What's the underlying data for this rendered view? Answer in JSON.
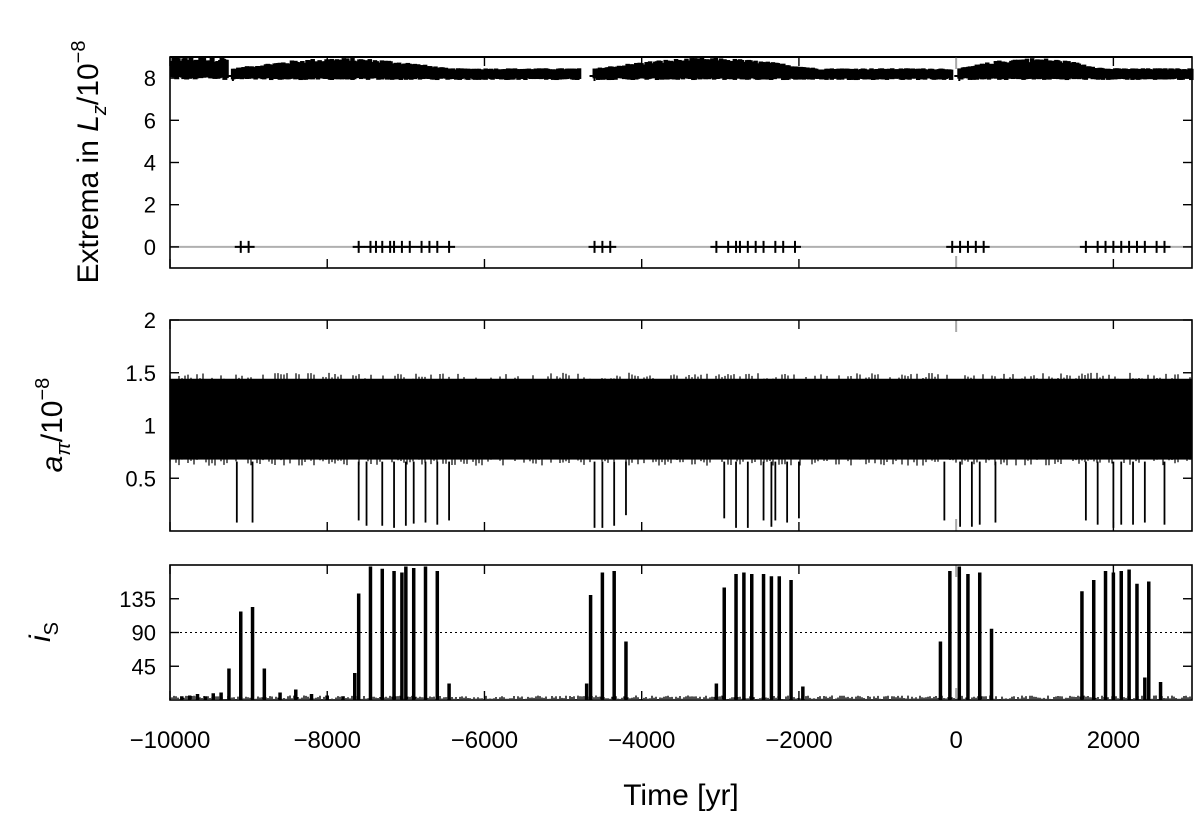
{
  "chart_data": [
    {
      "type": "scatter",
      "marker": "plus",
      "ylabel_parts": {
        "main": "Extrema in ",
        "var": "L",
        "sub": "z",
        "rest": "/10",
        "sup": "−8"
      },
      "ylim": [
        -1,
        9
      ],
      "yticks": [
        0,
        2,
        4,
        6,
        8
      ],
      "ytick_labels": [
        "0",
        "2",
        "4",
        "6",
        "8"
      ],
      "hlines": [
        {
          "y": 0,
          "color": "#b0b0b0"
        },
        {
          "y": 9,
          "color": "#000000"
        }
      ],
      "series": [
        {
          "band_upper_x": [
            -10000,
            -9300
          ],
          "band_lower": [
            {
              "x0": -9200,
              "x1": -4800,
              "base": 8.1,
              "top": 9.0
            },
            {
              "x0": -4600,
              "x1": -60,
              "base": 8.1,
              "top": 9.0
            },
            {
              "x0": 40,
              "x1": 3000,
              "base": 8.1,
              "top": 9.0
            }
          ],
          "minima_x": [
            -9100,
            -9000,
            -7600,
            -7450,
            -7380,
            -7300,
            -7200,
            -7150,
            -7050,
            -6950,
            -6800,
            -6700,
            -6600,
            -6450,
            -4600,
            -4500,
            -4400,
            -3050,
            -2900,
            -2800,
            -2750,
            -2650,
            -2550,
            -2450,
            -2300,
            -2200,
            -2050,
            -50,
            50,
            150,
            250,
            350,
            1650,
            1800,
            1900,
            2000,
            2100,
            2200,
            2300,
            2400,
            2550,
            2650
          ],
          "minima_y": 0
        }
      ]
    },
    {
      "type": "line",
      "ylabel_parts": {
        "var": "a",
        "sub": "π",
        "rest": "/10",
        "sup": "−8"
      },
      "ylim": [
        0,
        2
      ],
      "yticks": [
        0.5,
        1,
        1.5,
        2
      ],
      "ytick_labels": [
        "0.5",
        "1",
        "1.5",
        "2"
      ],
      "band": {
        "low": 0.62,
        "high": 1.5
      },
      "dips": [
        {
          "x": -9150,
          "y": 0.08
        },
        {
          "x": -8950,
          "y": 0.08
        },
        {
          "x": -7600,
          "y": 0.1
        },
        {
          "x": -7500,
          "y": 0.05
        },
        {
          "x": -7300,
          "y": 0.05
        },
        {
          "x": -7150,
          "y": 0.03
        },
        {
          "x": -7000,
          "y": 0.05
        },
        {
          "x": -6900,
          "y": 0.07
        },
        {
          "x": -6750,
          "y": 0.08
        },
        {
          "x": -6600,
          "y": 0.06
        },
        {
          "x": -6450,
          "y": 0.1
        },
        {
          "x": -4600,
          "y": 0.03
        },
        {
          "x": -4500,
          "y": 0.03
        },
        {
          "x": -4350,
          "y": 0.05
        },
        {
          "x": -4200,
          "y": 0.15
        },
        {
          "x": -2950,
          "y": 0.12
        },
        {
          "x": -2800,
          "y": 0.03
        },
        {
          "x": -2650,
          "y": 0.03
        },
        {
          "x": -2450,
          "y": 0.1
        },
        {
          "x": -2350,
          "y": 0.04
        },
        {
          "x": -2300,
          "y": 0.1
        },
        {
          "x": -2150,
          "y": 0.08
        },
        {
          "x": -2000,
          "y": 0.12
        },
        {
          "x": -150,
          "y": 0.1
        },
        {
          "x": 50,
          "y": 0.04
        },
        {
          "x": 200,
          "y": 0.04
        },
        {
          "x": 300,
          "y": 0.06
        },
        {
          "x": 500,
          "y": 0.08
        },
        {
          "x": 1650,
          "y": 0.1
        },
        {
          "x": 1800,
          "y": 0.06
        },
        {
          "x": 2000,
          "y": 0.03
        },
        {
          "x": 2100,
          "y": 0.06
        },
        {
          "x": 2250,
          "y": 0.06
        },
        {
          "x": 2400,
          "y": 0.08
        },
        {
          "x": 2650,
          "y": 0.06
        }
      ]
    },
    {
      "type": "bar",
      "ylabel_parts": {
        "var": "i",
        "sub": "S"
      },
      "ylim": [
        0,
        180
      ],
      "yticks": [
        45,
        90,
        135
      ],
      "ytick_labels": [
        "45",
        "90",
        "135"
      ],
      "hlines": [
        {
          "y": 90,
          "style": "dotted"
        }
      ],
      "spikes": [
        {
          "x": -9850,
          "y": 5
        },
        {
          "x": -9750,
          "y": 6
        },
        {
          "x": -9650,
          "y": 8
        },
        {
          "x": -9550,
          "y": 5
        },
        {
          "x": -9450,
          "y": 9
        },
        {
          "x": -9350,
          "y": 10
        },
        {
          "x": -9250,
          "y": 42
        },
        {
          "x": -9100,
          "y": 118
        },
        {
          "x": -8950,
          "y": 124
        },
        {
          "x": -8800,
          "y": 42
        },
        {
          "x": -8600,
          "y": 10
        },
        {
          "x": -8400,
          "y": 14
        },
        {
          "x": -8200,
          "y": 8
        },
        {
          "x": -8000,
          "y": 6
        },
        {
          "x": -7800,
          "y": 5
        },
        {
          "x": -7650,
          "y": 36
        },
        {
          "x": -7600,
          "y": 142
        },
        {
          "x": -7450,
          "y": 178
        },
        {
          "x": -7300,
          "y": 175
        },
        {
          "x": -7150,
          "y": 172
        },
        {
          "x": -7050,
          "y": 170
        },
        {
          "x": -7000,
          "y": 178
        },
        {
          "x": -6900,
          "y": 176
        },
        {
          "x": -6750,
          "y": 178
        },
        {
          "x": -6600,
          "y": 172
        },
        {
          "x": -6450,
          "y": 22
        },
        {
          "x": -4700,
          "y": 22
        },
        {
          "x": -4650,
          "y": 140
        },
        {
          "x": -4500,
          "y": 170
        },
        {
          "x": -4350,
          "y": 172
        },
        {
          "x": -4200,
          "y": 78
        },
        {
          "x": -3050,
          "y": 22
        },
        {
          "x": -2950,
          "y": 150
        },
        {
          "x": -2800,
          "y": 168
        },
        {
          "x": -2700,
          "y": 170
        },
        {
          "x": -2600,
          "y": 168
        },
        {
          "x": -2450,
          "y": 168
        },
        {
          "x": -2350,
          "y": 165
        },
        {
          "x": -2250,
          "y": 165
        },
        {
          "x": -2100,
          "y": 160
        },
        {
          "x": -1950,
          "y": 18
        },
        {
          "x": -200,
          "y": 78
        },
        {
          "x": -80,
          "y": 172
        },
        {
          "x": 40,
          "y": 178
        },
        {
          "x": 150,
          "y": 168
        },
        {
          "x": 300,
          "y": 170
        },
        {
          "x": 450,
          "y": 95
        },
        {
          "x": 1600,
          "y": 145
        },
        {
          "x": 1750,
          "y": 160
        },
        {
          "x": 1900,
          "y": 172
        },
        {
          "x": 2000,
          "y": 170
        },
        {
          "x": 2100,
          "y": 172
        },
        {
          "x": 2200,
          "y": 174
        },
        {
          "x": 2300,
          "y": 155
        },
        {
          "x": 2400,
          "y": 30
        },
        {
          "x": 2450,
          "y": 158
        },
        {
          "x": 2600,
          "y": 24
        }
      ]
    }
  ],
  "x_axis": {
    "label": "Time [yr]",
    "xlim": [
      -10000,
      3000
    ],
    "ticks": [
      -10000,
      -8000,
      -6000,
      -4000,
      -2000,
      0,
      2000
    ],
    "tick_labels": [
      "−10000",
      "−8000",
      "−6000",
      "−4000",
      "−2000",
      "0",
      "2000"
    ],
    "vline_at": 0
  }
}
